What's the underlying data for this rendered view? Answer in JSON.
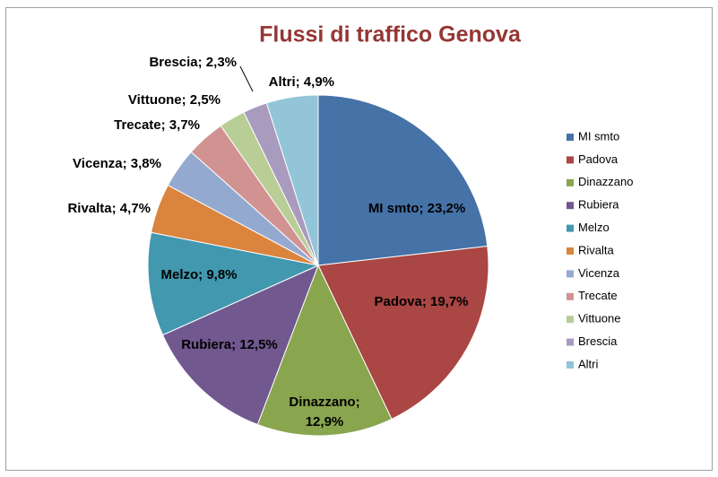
{
  "chart_data": {
    "type": "pie",
    "title": "Flussi di traffico Genova",
    "categories": [
      "MI smto",
      "Padova",
      "Dinazzano",
      "Rubiera",
      "Melzo",
      "Rivalta",
      "Vicenza",
      "Trecate",
      "Vittuone",
      "Brescia",
      "Altri"
    ],
    "values": [
      23.2,
      19.7,
      12.9,
      12.5,
      9.8,
      4.7,
      3.8,
      3.7,
      2.5,
      2.3,
      4.9
    ],
    "value_labels": [
      "MI smto; 23,2%",
      "Padova; 19,7%",
      "Dinazzano; 12,9%",
      "Rubiera; 12,5%",
      "Melzo; 9,8%",
      "Rivalta; 4,7%",
      "Vicenza; 3,8%",
      "Trecate; 3,7%",
      "Vittuone; 2,5%",
      "Brescia; 2,3%",
      "Altri; 4,9%"
    ],
    "colors": [
      "#4572a7",
      "#aa4643",
      "#89a54e",
      "#71588f",
      "#4198af",
      "#db843d",
      "#93a9cf",
      "#d19392",
      "#b9cd96",
      "#a99bbd",
      "#92c5d8"
    ],
    "legend": "right"
  }
}
